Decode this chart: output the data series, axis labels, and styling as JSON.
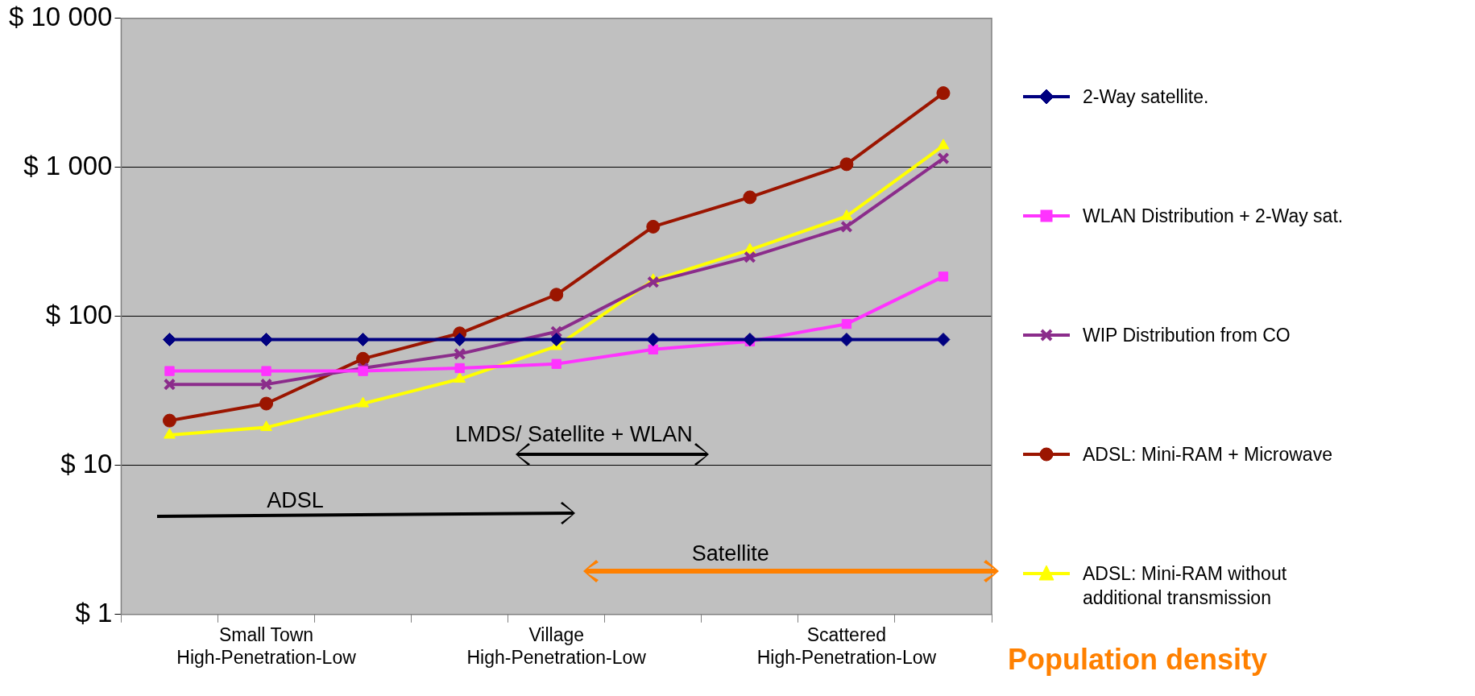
{
  "chart_data": {
    "type": "line",
    "xlabel": "Population density",
    "categories": [
      null,
      "Small Town\nHigh-Penetration-Low",
      null,
      null,
      "Village\nHigh-Penetration-Low",
      null,
      null,
      "Scattered\nHigh-Penetration-Low",
      null
    ],
    "series": [
      {
        "name": "2-Way satellite.",
        "color": "#000080",
        "marker": "diamond",
        "values": [
          70,
          70,
          70,
          70,
          70,
          70,
          70,
          70,
          70
        ]
      },
      {
        "name": "WLAN Distribution + 2-Way sat.",
        "color": "#ff33ff",
        "marker": "square",
        "values": [
          43,
          43,
          43,
          45,
          48,
          60,
          68,
          89,
          185
        ]
      },
      {
        "name": "WIP Distribution from CO",
        "color": "#8b2c8b",
        "marker": "cross",
        "values": [
          35,
          35,
          45,
          56,
          79,
          170,
          250,
          400,
          1150
        ]
      },
      {
        "name": "ADSL: Mini-RAM + Microwave",
        "color": "#9b1500",
        "marker": "circle",
        "values": [
          20,
          26,
          52,
          77,
          140,
          400,
          630,
          1050,
          3150
        ]
      },
      {
        "name": "ADSL: Mini-RAM without additional transmission",
        "color": "#ffff00",
        "marker": "triangle",
        "values": [
          16,
          18,
          26,
          38,
          63,
          175,
          280,
          470,
          1400
        ]
      }
    ],
    "log": "y",
    "ylim": [
      1,
      10000
    ],
    "yticks": [
      {
        "value": 1,
        "label": "$ 1"
      },
      {
        "value": 10,
        "label": "$ 10"
      },
      {
        "value": 100,
        "label": "$ 100"
      },
      {
        "value": 1000,
        "label": "$ 1 000"
      },
      {
        "value": 10000,
        "label": "$ 10 000"
      }
    ],
    "grid": "y",
    "legend": "right",
    "annotations": [
      "ADSL",
      "LMDS/ Satellite + WLAN",
      "Satellite"
    ]
  }
}
